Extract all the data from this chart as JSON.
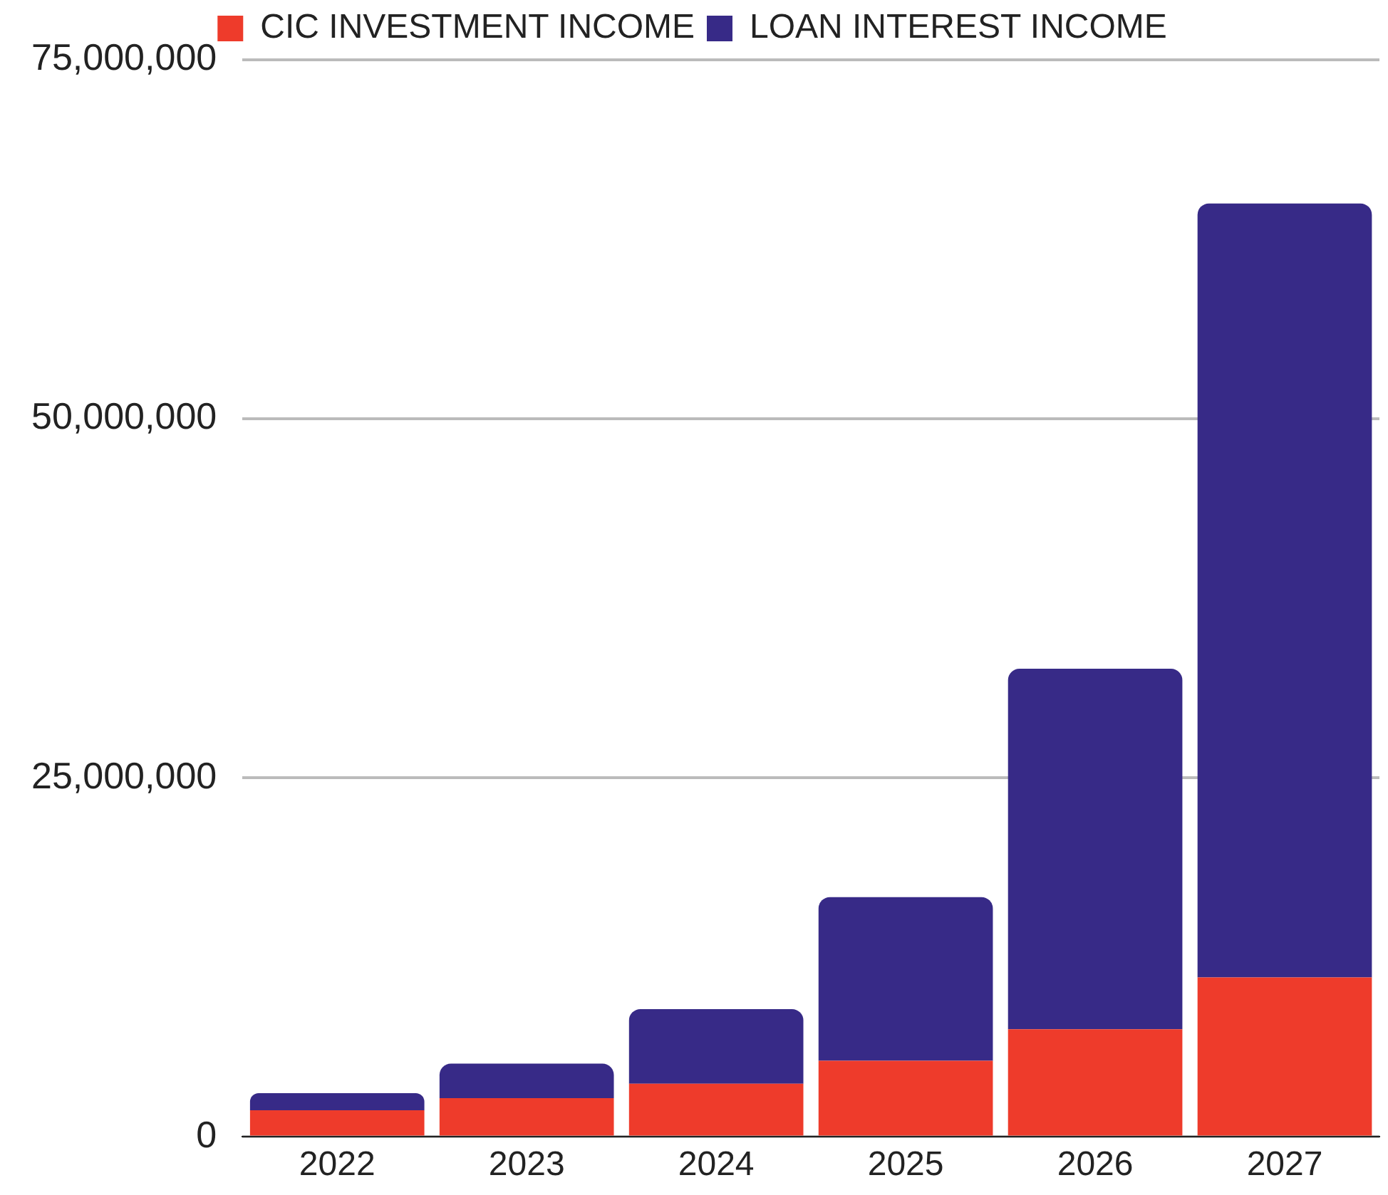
{
  "chart_data": {
    "type": "bar",
    "stacked": true,
    "categories": [
      "2022",
      "2023",
      "2024",
      "2025",
      "2026",
      "2027"
    ],
    "series": [
      {
        "name": "CIC INVESTMENT INCOME",
        "color": "#ee3b2b",
        "values": [
          1850000,
          2700000,
          3700000,
          5300000,
          7500000,
          11100000
        ]
      },
      {
        "name": "LOAN INTEREST INCOME",
        "color": "#372a87",
        "values": [
          1200000,
          2400000,
          5200000,
          11400000,
          25100000,
          53900000
        ]
      }
    ],
    "ylim": [
      0,
      75000000
    ],
    "yticks": [
      {
        "value": 0,
        "label": "0"
      },
      {
        "value": 25000000,
        "label": "25,000,000"
      },
      {
        "value": 50000000,
        "label": "50,000,000"
      },
      {
        "value": 75000000,
        "label": "75,000,000"
      }
    ],
    "grid": "y",
    "legend": "top"
  }
}
